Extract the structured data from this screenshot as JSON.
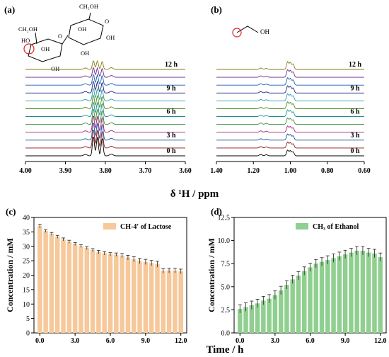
{
  "figure": {
    "nmr_xlabel": "δ ¹H / ppm",
    "bottom_xlabel": "Time / h"
  },
  "chart_data": [
    {
      "panel": "(a)",
      "type": "line",
      "description_text": "stacked 1H NMR spectra",
      "xlim": [
        4.0,
        3.6
      ],
      "x_reversed": true,
      "xticks": [
        "4.00",
        "3.90",
        "3.80",
        "3.70",
        "3.60"
      ],
      "trace_labels": [
        "12 h",
        "9 h",
        "6 h",
        "3 h",
        "0 h"
      ],
      "trace_count": 12,
      "trace_colors": [
        "#000000",
        "#8b1a1a",
        "#1a4fa0",
        "#a0206e",
        "#3c8c3c",
        "#1f8f8f",
        "#4a8a20",
        "#2a9fa0",
        "#1a237e",
        "#1a5fae",
        "#6a2a8a",
        "#8a7a1a"
      ],
      "peaks_ppm": [
        3.83,
        3.82,
        3.808,
        3.85,
        3.785
      ],
      "molecule": "lactose",
      "highlight": "CH-4' (red circle)"
    },
    {
      "panel": "(b)",
      "type": "line",
      "xlim": [
        1.4,
        0.6
      ],
      "x_reversed": true,
      "xticks": [
        "1.40",
        "1.20",
        "1.00",
        "0.80",
        "0.60"
      ],
      "trace_labels": [
        "12 h",
        "9 h",
        "6 h",
        "3 h",
        "0 h"
      ],
      "trace_count": 12,
      "peaks_ppm": [
        1.015,
        1.0,
        0.985,
        1.16,
        1.13
      ],
      "molecule": "ethanol",
      "structure_label": "OH",
      "highlight": "CH3 (red circle)"
    },
    {
      "panel": "(c)",
      "type": "bar",
      "legend": "CH-4′ of Lactose",
      "legend_position": "top-right",
      "ylabel": "Concentration / mM",
      "xlabel": "Time / h",
      "ylim": [
        0,
        40
      ],
      "yticks": [
        0,
        5,
        10,
        15,
        20,
        25,
        30,
        35,
        40
      ],
      "xticks": [
        0.0,
        3.0,
        6.0,
        9.0,
        12.0
      ],
      "xtick_labels": [
        "0.0",
        "3.0",
        "6.0",
        "9.0",
        "12.0"
      ],
      "color": "#f6c89a",
      "x": [
        0,
        0.5,
        1,
        1.5,
        2,
        2.5,
        3,
        3.5,
        4,
        4.5,
        5,
        5.5,
        6,
        6.5,
        7,
        7.5,
        8,
        8.5,
        9,
        9.5,
        10,
        10.5,
        11,
        11.5,
        12
      ],
      "values": [
        37.0,
        35.3,
        34.3,
        33.3,
        32.4,
        31.6,
        30.8,
        30.1,
        29.4,
        28.7,
        28.0,
        27.6,
        27.3,
        27.1,
        26.8,
        26.1,
        25.5,
        24.9,
        24.6,
        24.2,
        23.8,
        21.5,
        21.6,
        21.6,
        21.3
      ],
      "errors": [
        0.6,
        0.5,
        0.5,
        0.5,
        0.5,
        0.5,
        0.5,
        0.5,
        0.5,
        0.5,
        0.6,
        0.6,
        0.6,
        0.6,
        0.7,
        0.8,
        0.9,
        0.9,
        0.9,
        0.9,
        1.0,
        0.8,
        0.8,
        0.8,
        0.8
      ]
    },
    {
      "panel": "(d)",
      "type": "bar",
      "legend": "CH₃ of Ethanol",
      "legend_position": "top-right",
      "ylabel": "Concentration / mM",
      "xlabel": "Time / h",
      "ylim": [
        0,
        12.5
      ],
      "yticks": [
        0,
        2.5,
        5,
        7.5,
        10,
        12.5
      ],
      "ytick_labels": [
        "0.0",
        "2.5",
        "5.0",
        "7.5",
        "10.0",
        "12.5"
      ],
      "xticks": [
        0.0,
        3.0,
        6.0,
        9.0,
        12.0
      ],
      "xtick_labels": [
        "0.0",
        "3.0",
        "6.0",
        "9.0",
        "12.0"
      ],
      "color": "#8fcf8f",
      "x": [
        0,
        0.5,
        1,
        1.5,
        2,
        2.5,
        3,
        3.5,
        4,
        4.5,
        5,
        5.5,
        6,
        6.5,
        7,
        7.5,
        8,
        8.5,
        9,
        9.5,
        10,
        10.5,
        11,
        11.5,
        12
      ],
      "values": [
        2.6,
        2.8,
        3.0,
        3.2,
        3.5,
        3.7,
        4.1,
        4.6,
        5.2,
        5.8,
        6.2,
        6.7,
        7.1,
        7.5,
        7.7,
        7.9,
        8.1,
        8.3,
        8.5,
        8.7,
        8.9,
        8.9,
        8.7,
        8.6,
        8.2
      ]
    }
  ]
}
